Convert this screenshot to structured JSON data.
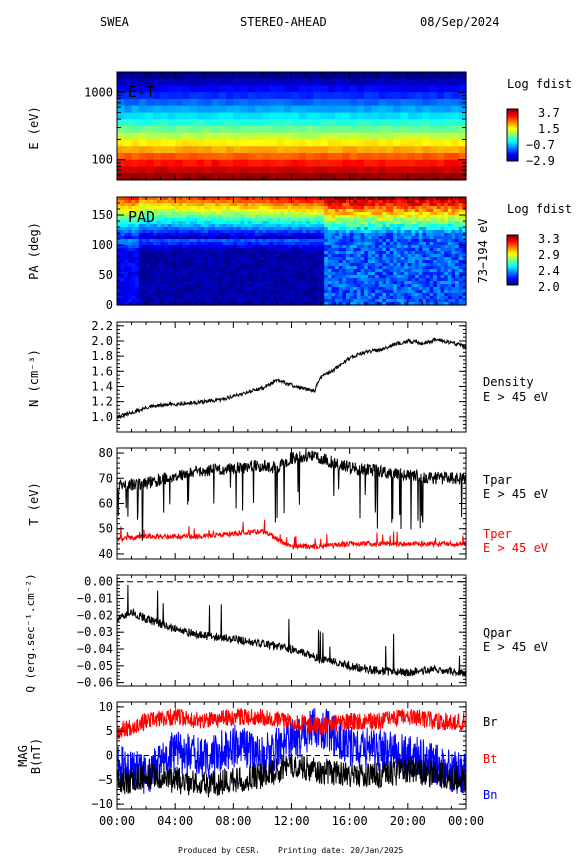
{
  "header": {
    "instrument": "SWEA",
    "spacecraft": "STEREO-AHEAD",
    "date": "08/Sep/2024"
  },
  "footer": {
    "produced": "Produced by CESR.",
    "printing": "Printing date: 20/Jan/2025"
  },
  "colors": {
    "black": "#000000",
    "red": "#ff0000",
    "blue": "#0000ff"
  },
  "chart_data": [
    {
      "type": "heatmap",
      "id": "et",
      "title": "E-T",
      "ylabel": "E (eV)",
      "yscale": "log",
      "yticks": [
        "1000",
        "100"
      ],
      "ylim": [
        50,
        2000
      ],
      "colorbar": {
        "title": "Log fdist",
        "ticks": [
          "3.7",
          "1.5",
          "−0.7",
          "−2.9"
        ],
        "range": [
          -2.9,
          3.7
        ]
      },
      "energy_bands_log_fdist": [
        -2.8,
        -2.5,
        -2.1,
        -1.8,
        -1.4,
        -1.0,
        -0.6,
        -0.2,
        0.3,
        0.8,
        1.3,
        1.8,
        2.3,
        2.8,
        3.2,
        3.6
      ]
    },
    {
      "type": "heatmap",
      "id": "pad",
      "title": "PAD",
      "ylabel": "PA (deg)",
      "ylim": [
        0,
        180
      ],
      "yticks": [
        "150",
        "100",
        "50",
        "0"
      ],
      "right_label": "73−194 eV",
      "colorbar": {
        "title": "Log fdist",
        "ticks": [
          "3.3",
          "2.9",
          "2.4",
          "2.0"
        ],
        "range": [
          2.0,
          3.3
        ]
      }
    },
    {
      "type": "line",
      "id": "density",
      "ylabel": "N (cm⁻³)",
      "ylim": [
        0.8,
        2.25
      ],
      "yticks": [
        "2.2",
        "2.0",
        "1.8",
        "1.6",
        "1.4",
        "1.2",
        "1.0"
      ],
      "series": [
        {
          "name": "Density",
          "subname": "E > 45 eV",
          "color": "#000000",
          "x": [
            0,
            1,
            2,
            3,
            4,
            5,
            6,
            7,
            8,
            9,
            10,
            11,
            12,
            13,
            13.6,
            14,
            15,
            16,
            17,
            18,
            19,
            20,
            21,
            22,
            23,
            24
          ],
          "y": [
            1.0,
            1.05,
            1.12,
            1.15,
            1.17,
            1.18,
            1.2,
            1.22,
            1.27,
            1.33,
            1.38,
            1.48,
            1.42,
            1.36,
            1.35,
            1.52,
            1.63,
            1.78,
            1.85,
            1.88,
            1.95,
            2.0,
            1.97,
            2.02,
            1.98,
            1.93
          ]
        }
      ]
    },
    {
      "type": "line",
      "id": "temperature",
      "ylabel": "T (eV)",
      "ylim": [
        38,
        82
      ],
      "yticks": [
        "80",
        "70",
        "60",
        "50",
        "40"
      ],
      "series": [
        {
          "name": "Tpar",
          "subname": "E > 45 eV",
          "color": "#000000",
          "x": [
            0,
            2,
            4,
            6,
            8,
            10,
            11,
            12,
            13,
            14,
            16,
            18,
            20,
            22,
            24
          ],
          "y": [
            67,
            68,
            71,
            73,
            74,
            75,
            74,
            78,
            79,
            78,
            74,
            73,
            71,
            70,
            70
          ]
        },
        {
          "name": "Tper",
          "subname": "E > 45 eV",
          "color": "#ff0000",
          "x": [
            0,
            2,
            4,
            6,
            8,
            10,
            11,
            12,
            13,
            14,
            16,
            18,
            20,
            22,
            24
          ],
          "y": [
            46,
            47,
            47,
            47,
            48,
            49,
            46,
            43,
            43,
            43,
            44,
            44,
            44,
            44,
            44
          ]
        }
      ]
    },
    {
      "type": "line",
      "id": "heatflux",
      "ylabel": "Q (erg.sec⁻¹.cm⁻²)",
      "ylim": [
        -0.062,
        0.004
      ],
      "yticks": [
        "0.00",
        "−0.01",
        "−0.02",
        "−0.03",
        "−0.04",
        "−0.05",
        "−0.06"
      ],
      "reference_line": 0.0,
      "series": [
        {
          "name": "Qpar",
          "subname": "E > 45 eV",
          "color": "#000000",
          "x": [
            0,
            1,
            2,
            4,
            6,
            8,
            10,
            12,
            14,
            16,
            18,
            20,
            22,
            24
          ],
          "y": [
            -0.023,
            -0.018,
            -0.022,
            -0.028,
            -0.032,
            -0.034,
            -0.037,
            -0.04,
            -0.046,
            -0.05,
            -0.053,
            -0.054,
            -0.052,
            -0.055
          ]
        }
      ]
    },
    {
      "type": "line",
      "id": "mag",
      "ylabel": "MAG",
      "ylabel2": "B(nT)",
      "ylim": [
        -11,
        11
      ],
      "yticks": [
        "10",
        "5",
        "0",
        "−5",
        "−10"
      ],
      "reference_line": 0,
      "xticks": [
        "00:00",
        "04:00",
        "08:00",
        "12:00",
        "16:00",
        "20:00",
        "00:00"
      ],
      "series": [
        {
          "name": "Br",
          "color": "#000000",
          "x": [
            0,
            2,
            4,
            6,
            8,
            10,
            12,
            14,
            16,
            18,
            20,
            22,
            24
          ],
          "y": [
            -6,
            -4,
            -5,
            -6,
            -5,
            -4,
            -2,
            -3,
            -4,
            -4,
            -3,
            -4,
            -5
          ]
        },
        {
          "name": "Bt",
          "color": "#ff0000",
          "x": [
            0,
            2,
            4,
            6,
            8,
            10,
            12,
            14,
            16,
            18,
            20,
            22,
            24
          ],
          "y": [
            5,
            7,
            8,
            7,
            8,
            8,
            7,
            6,
            7,
            7,
            8,
            7,
            7
          ]
        },
        {
          "name": "Bn",
          "color": "#0000ff",
          "x": [
            0,
            2,
            4,
            6,
            8,
            10,
            12,
            14,
            16,
            18,
            20,
            22,
            24
          ],
          "y": [
            -2,
            -4,
            1,
            -1,
            2,
            0,
            3,
            6,
            2,
            1,
            0,
            -2,
            -4
          ]
        }
      ]
    }
  ]
}
